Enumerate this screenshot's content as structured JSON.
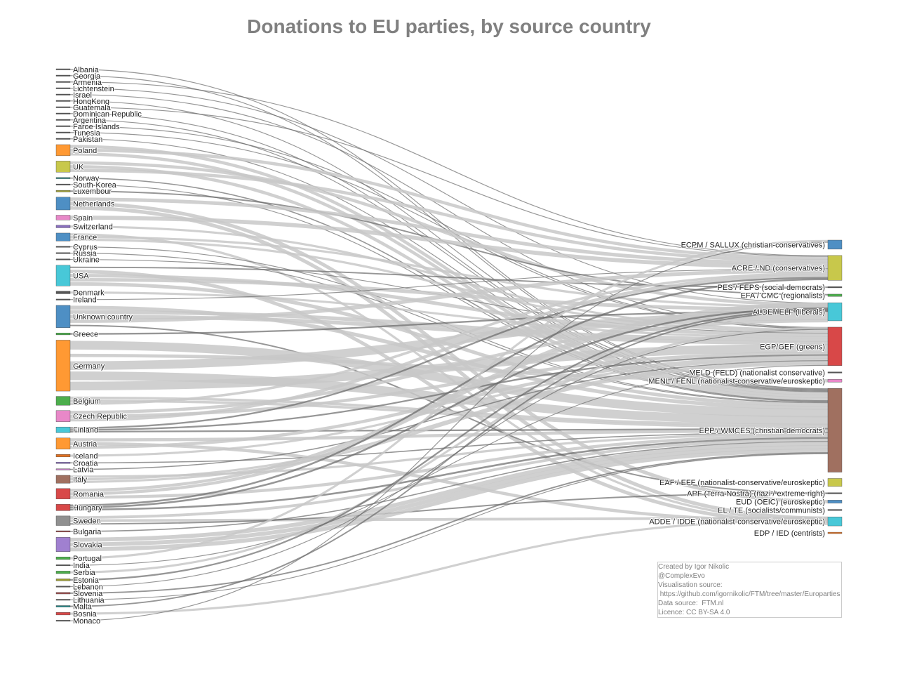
{
  "title": "Donations to EU parties, by source country",
  "credits": [
    "Created by Igor Nikolic",
    "@ComplexEvo",
    "Visualisation source:",
    " https://github.com/igornikolic/FTM/tree/master/Europarties",
    "Data source:  FTM.nl",
    "Licence: CC BY-SA 4.0"
  ],
  "chart_data": {
    "type": "sankey",
    "title": "Donations to EU parties, by source country",
    "link_color": "#c8c8c8",
    "source_countries": [
      {
        "name": "Albania",
        "weight": 0.3,
        "color": "#555555"
      },
      {
        "name": "Georgia",
        "weight": 0.3,
        "color": "#555555"
      },
      {
        "name": "Armenia",
        "weight": 0.3,
        "color": "#555555"
      },
      {
        "name": "Lichtenstein",
        "weight": 0.3,
        "color": "#555555"
      },
      {
        "name": "Israel",
        "weight": 0.3,
        "color": "#555555"
      },
      {
        "name": "HongKong",
        "weight": 0.3,
        "color": "#555555"
      },
      {
        "name": "Guatemala",
        "weight": 0.3,
        "color": "#555555"
      },
      {
        "name": "Dominican Republic",
        "weight": 0.3,
        "color": "#555555"
      },
      {
        "name": "Argentina",
        "weight": 0.3,
        "color": "#555555"
      },
      {
        "name": "Faroe Islands",
        "weight": 0.3,
        "color": "#555555"
      },
      {
        "name": "Tunesia",
        "weight": 0.3,
        "color": "#555555"
      },
      {
        "name": "Pakistan",
        "weight": 0.3,
        "color": "#555555"
      },
      {
        "name": "Poland",
        "weight": 3.5,
        "color": "#ff9933"
      },
      {
        "name": "UK",
        "weight": 3.5,
        "color": "#c8c84b"
      },
      {
        "name": "Norway",
        "weight": 0.4,
        "color": "#2e8b8b"
      },
      {
        "name": "South-Korea",
        "weight": 0.3,
        "color": "#555555"
      },
      {
        "name": "Luxembour",
        "weight": 0.5,
        "color": "#9a9a30"
      },
      {
        "name": "Netherlands",
        "weight": 4.0,
        "color": "#4e8fc4"
      },
      {
        "name": "Spain",
        "weight": 1.5,
        "color": "#e888c8"
      },
      {
        "name": "Switzerland",
        "weight": 0.8,
        "color": "#8a70c0"
      },
      {
        "name": "France",
        "weight": 2.5,
        "color": "#4e8fc4"
      },
      {
        "name": "Cyprus",
        "weight": 0.3,
        "color": "#555555"
      },
      {
        "name": "Russia",
        "weight": 0.3,
        "color": "#555555"
      },
      {
        "name": "Ukraine",
        "weight": 0.3,
        "color": "#555555"
      },
      {
        "name": "USA",
        "weight": 6.5,
        "color": "#48c8d8"
      },
      {
        "name": "Denmark",
        "weight": 0.8,
        "color": "#555555"
      },
      {
        "name": "Ireland",
        "weight": 0.3,
        "color": "#555555"
      },
      {
        "name": "Unknown country",
        "weight": 7.0,
        "color": "#4e8fc4"
      },
      {
        "name": "Greece",
        "weight": 0.6,
        "color": "#4cae4c"
      },
      {
        "name": "Germany",
        "weight": 16.0,
        "color": "#ff9933"
      },
      {
        "name": "Belgium",
        "weight": 2.8,
        "color": "#4cae4c"
      },
      {
        "name": "Czech Republic",
        "weight": 3.5,
        "color": "#e888c8"
      },
      {
        "name": "Finland",
        "weight": 1.8,
        "color": "#48c8d8"
      },
      {
        "name": "Austria",
        "weight": 3.5,
        "color": "#ff9933"
      },
      {
        "name": "Iceland",
        "weight": 0.8,
        "color": "#e07020"
      },
      {
        "name": "Croatia",
        "weight": 0.4,
        "color": "#8a70c0"
      },
      {
        "name": "Latvia",
        "weight": 0.4,
        "color": "#c080c0"
      },
      {
        "name": "Italy",
        "weight": 2.5,
        "color": "#a07060"
      },
      {
        "name": "Romania",
        "weight": 3.3,
        "color": "#d84848"
      },
      {
        "name": "Hungary",
        "weight": 2.0,
        "color": "#d84848"
      },
      {
        "name": "Sweden",
        "weight": 3.0,
        "color": "#909090"
      },
      {
        "name": "Bulgaria",
        "weight": 0.4,
        "color": "#a05050"
      },
      {
        "name": "Slovakia",
        "weight": 4.5,
        "color": "#a080d0"
      },
      {
        "name": "Portugal",
        "weight": 0.8,
        "color": "#4cae4c"
      },
      {
        "name": "India",
        "weight": 0.3,
        "color": "#555555"
      },
      {
        "name": "Serbia",
        "weight": 0.8,
        "color": "#4cae4c"
      },
      {
        "name": "Estonia",
        "weight": 0.6,
        "color": "#9a9a30"
      },
      {
        "name": "Lebanon",
        "weight": 0.3,
        "color": "#555555"
      },
      {
        "name": "Slovenia",
        "weight": 0.5,
        "color": "#a05050"
      },
      {
        "name": "Lithuania",
        "weight": 0.3,
        "color": "#555555"
      },
      {
        "name": "Malta",
        "weight": 0.5,
        "color": "#2e8b8b"
      },
      {
        "name": "Bosnia",
        "weight": 0.8,
        "color": "#d84848"
      },
      {
        "name": "Monaco",
        "weight": 0.3,
        "color": "#555555"
      }
    ],
    "target_parties": [
      {
        "name": "ECPM / SALLUX (christian-conservatives)",
        "weight": 4,
        "color": "#4e8fc4"
      },
      {
        "name": "ACRE / ND (conservatives)",
        "weight": 11,
        "color": "#c8c84b"
      },
      {
        "name": "PES / FEPS (social-democrats)",
        "weight": 0.5,
        "color": "#555555"
      },
      {
        "name": "EFA / CMC (regionalists)",
        "weight": 1.0,
        "color": "#4cae4c"
      },
      {
        "name": "ALDE / ELF (liberals)",
        "weight": 8,
        "color": "#48c8d8"
      },
      {
        "name": "EGP/GEF (greens)",
        "weight": 17,
        "color": "#d84848"
      },
      {
        "name": "MELD (FELD) (nationalist conservative)",
        "weight": 0.5,
        "color": "#555555"
      },
      {
        "name": "MENL / FENL (nationalist-conservative/euroskeptic)",
        "weight": 1.2,
        "color": "#e888c8"
      },
      {
        "name": "EPP / WMCES (christian-democrats)",
        "weight": 37,
        "color": "#a07060"
      },
      {
        "name": "EAF / EFF (nationalist-conservative/euroskeptic)",
        "weight": 3.5,
        "color": "#c8c84b"
      },
      {
        "name": "APF (Terra Nostra) (nazi / extreme-right)",
        "weight": 0.5,
        "color": "#555555"
      },
      {
        "name": "EUD (OEIC) (euroskeptic)",
        "weight": 1.3,
        "color": "#4e8fc4"
      },
      {
        "name": "EL / TE (socialists/communists)",
        "weight": 0.5,
        "color": "#555555"
      },
      {
        "name": "ADDE / IDDE (nationalist-conservative/euroskeptic)",
        "weight": 4,
        "color": "#48c8d8"
      },
      {
        "name": "EDP / IED (centrists)",
        "weight": 0.6,
        "color": "#e07020"
      }
    ]
  }
}
